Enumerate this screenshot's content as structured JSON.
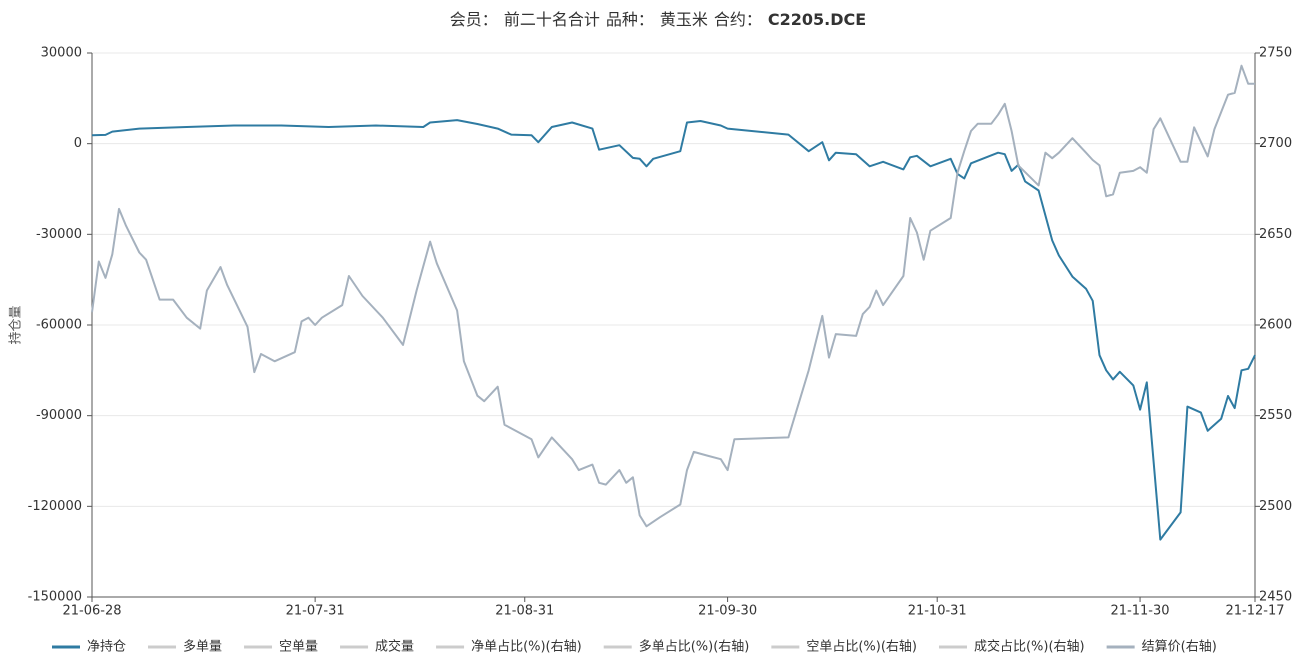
{
  "chart_data": {
    "type": "line",
    "title": [
      "会员：",
      "前二十名合计",
      "品种：",
      "黄玉米",
      "合约：",
      "C2205.DCE"
    ],
    "ylabel": "持仓量",
    "ylim": [
      -150000,
      30000
    ],
    "yticks": [
      30000,
      0,
      -30000,
      -60000,
      -90000,
      -120000,
      -150000
    ],
    "y2lim": [
      2450,
      2750
    ],
    "y2ticks": [
      2750,
      2700,
      2650,
      2600,
      2550,
      2500,
      2450
    ],
    "xlim": [
      "21-06-28",
      "21-12-17"
    ],
    "xticks": [
      "21-06-28",
      "21-07-31",
      "21-08-31",
      "21-09-30",
      "21-10-31",
      "21-11-30",
      "21-12-17"
    ],
    "grid": true,
    "series": [
      {
        "name": "净持仓",
        "color": "#2f7ba2",
        "visible": true,
        "x": [
          "21-06-28",
          "21-06-30",
          "21-07-01",
          "21-07-05",
          "21-07-12",
          "21-07-19",
          "21-07-26",
          "21-08-02",
          "21-08-09",
          "21-08-16",
          "21-08-17",
          "21-08-21",
          "21-08-24",
          "21-08-27",
          "21-08-29",
          "21-09-01",
          "21-09-02",
          "21-09-04",
          "21-09-07",
          "21-09-10",
          "21-09-11",
          "21-09-14",
          "21-09-16",
          "21-09-17",
          "21-09-18",
          "21-09-19",
          "21-09-23",
          "21-09-24",
          "21-09-26",
          "21-09-29",
          "21-09-30",
          "21-10-09",
          "21-10-12",
          "21-10-14",
          "21-10-15",
          "21-10-16",
          "21-10-19",
          "21-10-21",
          "21-10-23",
          "21-10-26",
          "21-10-27",
          "21-10-28",
          "21-10-30",
          "21-11-02",
          "21-11-03",
          "21-11-04",
          "21-11-05",
          "21-11-09",
          "21-11-10",
          "21-11-11",
          "21-11-12",
          "21-11-13",
          "21-11-15",
          "21-11-17",
          "21-11-18",
          "21-11-20",
          "21-11-22",
          "21-11-23",
          "21-11-24",
          "21-11-25",
          "21-11-26",
          "21-11-27",
          "21-11-29",
          "21-11-30",
          "21-12-01",
          "21-12-03",
          "21-12-06",
          "21-12-07",
          "21-12-09",
          "21-12-10",
          "21-12-12",
          "21-12-13",
          "21-12-14",
          "21-12-15",
          "21-12-16",
          "21-12-17"
        ],
        "values": [
          2800,
          2900,
          4000,
          5000,
          5500,
          6000,
          6000,
          5500,
          6000,
          5500,
          7000,
          7800,
          6500,
          5000,
          3000,
          2800,
          500,
          5500,
          7000,
          5000,
          -2000,
          -500,
          -4700,
          -5000,
          -7500,
          -5000,
          -2500,
          7000,
          7500,
          6000,
          5000,
          3000,
          -2500,
          500,
          -5500,
          -3000,
          -3500,
          -7500,
          -6000,
          -8500,
          -4500,
          -4000,
          -7500,
          -5000,
          -10000,
          -11500,
          -6500,
          -3000,
          -3500,
          -9000,
          -7000,
          -12500,
          -15500,
          -32000,
          -37000,
          -44000,
          -48000,
          -52000,
          -70000,
          -75000,
          -78000,
          -75500,
          -80000,
          -88000,
          -79000,
          -131000,
          -122000,
          -87000,
          -89000,
          -95000,
          -91000,
          -83500,
          -87500,
          -75000,
          -74500,
          -70000
        ]
      },
      {
        "name": "多单量",
        "color": "#cccccc",
        "visible": false
      },
      {
        "name": "空单量",
        "color": "#cccccc",
        "visible": false
      },
      {
        "name": "成交量",
        "color": "#cccccc",
        "visible": false
      },
      {
        "name": "净单占比(%)(右轴)",
        "color": "#cccccc",
        "visible": false
      },
      {
        "name": "多单占比(%)(右轴)",
        "color": "#cccccc",
        "visible": false
      },
      {
        "name": "空单占比(%)(右轴)",
        "color": "#cccccc",
        "visible": false
      },
      {
        "name": "成交占比(%)(右轴)",
        "color": "#cccccc",
        "visible": false
      },
      {
        "name": "结算价(右轴)",
        "color": "#a5b1be",
        "visible": true,
        "axis": "y2",
        "x": [
          "21-06-28",
          "21-06-29",
          "21-06-30",
          "21-07-01",
          "21-07-02",
          "21-07-03",
          "21-07-05",
          "21-07-06",
          "21-07-08",
          "21-07-10",
          "21-07-12",
          "21-07-14",
          "21-07-15",
          "21-07-17",
          "21-07-18",
          "21-07-21",
          "21-07-22",
          "21-07-23",
          "21-07-24",
          "21-07-25",
          "21-07-28",
          "21-07-29",
          "21-07-30",
          "21-07-31",
          "21-08-01",
          "21-08-04",
          "21-08-05",
          "21-08-07",
          "21-08-10",
          "21-08-13",
          "21-08-15",
          "21-08-17",
          "21-08-18",
          "21-08-21",
          "21-08-22",
          "21-08-24",
          "21-08-25",
          "21-08-27",
          "21-08-28",
          "21-09-01",
          "21-09-02",
          "21-09-04",
          "21-09-07",
          "21-09-08",
          "21-09-10",
          "21-09-11",
          "21-09-12",
          "21-09-14",
          "21-09-15",
          "21-09-16",
          "21-09-17",
          "21-09-18",
          "21-09-20",
          "21-09-23",
          "21-09-24",
          "21-09-25",
          "21-09-27",
          "21-09-29",
          "21-09-30",
          "21-10-01",
          "21-10-09",
          "21-10-12",
          "21-10-14",
          "21-10-15",
          "21-10-16",
          "21-10-19",
          "21-10-20",
          "21-10-21",
          "21-10-22",
          "21-10-23",
          "21-10-26",
          "21-10-27",
          "21-10-28",
          "21-10-29",
          "21-10-30",
          "21-11-02",
          "21-11-03",
          "21-11-04",
          "21-11-05",
          "21-11-06",
          "21-11-08",
          "21-11-09",
          "21-11-10",
          "21-11-11",
          "21-11-12",
          "21-11-15",
          "21-11-16",
          "21-11-17",
          "21-11-18",
          "21-11-20",
          "21-11-22",
          "21-11-23",
          "21-11-24",
          "21-11-25",
          "21-11-26",
          "21-11-27",
          "21-11-29",
          "21-11-30",
          "21-12-01",
          "21-12-02",
          "21-12-03",
          "21-12-06",
          "21-12-07",
          "21-12-08",
          "21-12-10",
          "21-12-11",
          "21-12-13",
          "21-12-14",
          "21-12-15",
          "21-12-16",
          "21-12-17"
        ],
        "values": [
          2607,
          2635,
          2626,
          2639,
          2664,
          2655,
          2640,
          2636,
          2614,
          2614,
          2604,
          2598,
          2619,
          2632,
          2622,
          2599,
          2574,
          2584,
          2582,
          2580,
          2585,
          2602,
          2604,
          2600,
          2604,
          2611,
          2627,
          2616,
          2604,
          2589,
          2619,
          2646,
          2634,
          2608,
          2580,
          2561,
          2558,
          2566,
          2545,
          2537,
          2527,
          2538,
          2526,
          2520,
          2523,
          2513,
          2512,
          2520,
          2513,
          2516,
          2495,
          2489,
          2494,
          2501,
          2520,
          2530,
          2528,
          2526,
          2520,
          2537,
          2538,
          2575,
          2605,
          2582,
          2595,
          2594,
          2606,
          2610,
          2619,
          2611,
          2627,
          2659,
          2651,
          2636,
          2652,
          2659,
          2684,
          2696,
          2707,
          2711,
          2711,
          2716,
          2722,
          2707,
          2688,
          2677,
          2695,
          2692,
          2695,
          2703,
          2695,
          2691,
          2688,
          2671,
          2672,
          2684,
          2685,
          2687,
          2684,
          2708,
          2714,
          2690,
          2690,
          2709,
          2693,
          2708,
          2727,
          2728,
          2743,
          2733,
          2733
        ]
      }
    ]
  }
}
